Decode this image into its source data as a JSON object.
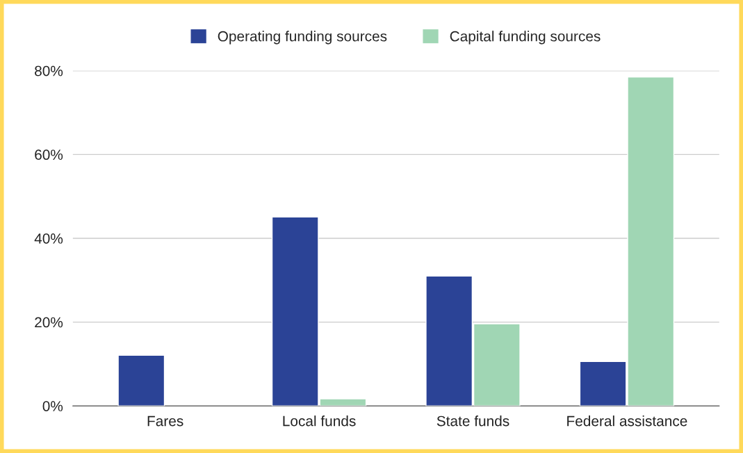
{
  "chart_data": {
    "type": "bar",
    "categories": [
      "Fares",
      "Local funds",
      "State funds",
      "Federal assistance"
    ],
    "series": [
      {
        "name": "Operating funding sources",
        "color": "#2b4396",
        "values": [
          12.1,
          45.1,
          31.0,
          10.6
        ]
      },
      {
        "name": "Capital funding sources",
        "color": "#a0d6b4",
        "values": [
          null,
          1.7,
          19.6,
          78.5
        ]
      }
    ],
    "ylim": [
      0,
      80
    ],
    "yticks": [
      {
        "value": 0,
        "label": "0%"
      },
      {
        "value": 20,
        "label": "20%"
      },
      {
        "value": 40,
        "label": "40%"
      },
      {
        "value": 60,
        "label": "60%"
      },
      {
        "value": 80,
        "label": "80%"
      }
    ],
    "grid": "y",
    "legend": "top"
  }
}
